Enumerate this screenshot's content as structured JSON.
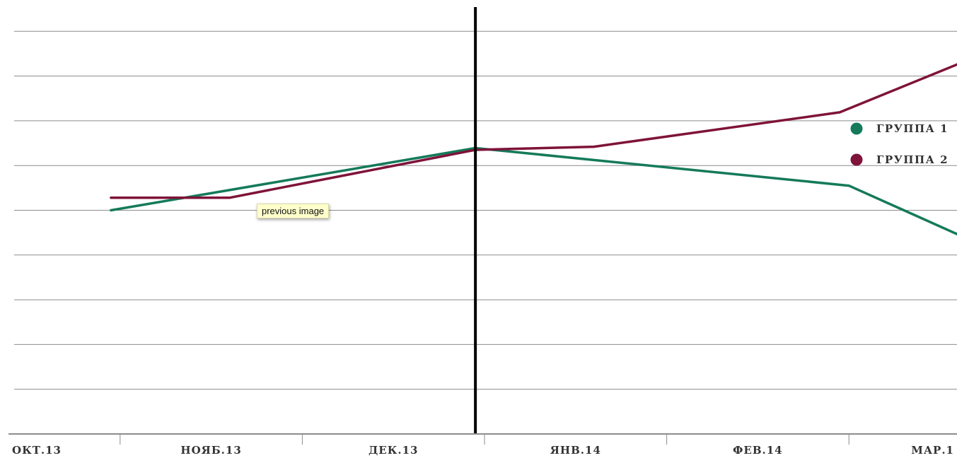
{
  "chart_data": {
    "type": "line",
    "categories": [
      "ОКТ.13",
      "НОЯБ.13",
      "ДЕК.13",
      "ЯНВ.14",
      "ФЕВ.14",
      "МАР.1"
    ],
    "series": [
      {
        "name": "ГРУППА 1",
        "color": "#147a5a",
        "points": [
          {
            "x": 0.45,
            "y": 5.0
          },
          {
            "x": 2.45,
            "y": 6.39
          },
          {
            "x": 4.5,
            "y": 5.55
          },
          {
            "x": 5.35,
            "y": 4.0
          }
        ]
      },
      {
        "name": "ГРУППА 2",
        "color": "#7f1339",
        "points": [
          {
            "x": 0.45,
            "y": 5.28
          },
          {
            "x": 1.1,
            "y": 5.28
          },
          {
            "x": 2.45,
            "y": 6.35
          },
          {
            "x": 3.1,
            "y": 6.42
          },
          {
            "x": 4.45,
            "y": 7.19
          },
          {
            "x": 5.25,
            "y": 8.52
          }
        ]
      }
    ],
    "ylim": [
      0,
      9.5
    ],
    "y_gridlines": [
      1,
      2,
      3,
      4,
      5,
      6,
      7,
      8,
      9
    ],
    "y_ticks_labeled": false,
    "grid": true,
    "legend": "right",
    "cursor_x": 2.45
  },
  "tooltip": {
    "text": "previous image"
  }
}
